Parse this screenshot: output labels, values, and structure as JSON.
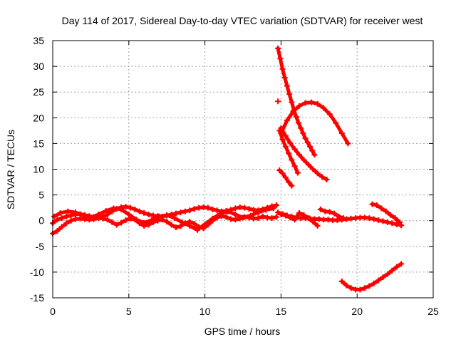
{
  "chart_data": {
    "type": "scatter",
    "title": "Day 114 of 2017, Sidereal Day-to-day VTEC variation (SDTVAR) for receiver west",
    "xlabel": "GPS time / hours",
    "ylabel": "SDTVAR / TECUs",
    "xlim": [
      0,
      25
    ],
    "ylim": [
      -15,
      35
    ],
    "xticks": [
      0,
      5,
      10,
      15,
      20,
      25
    ],
    "yticks": [
      -15,
      -10,
      -5,
      0,
      5,
      10,
      15,
      20,
      25,
      30,
      35
    ],
    "grid": true,
    "legend": "none",
    "marker": "+",
    "color": "#ff0000",
    "series": [
      {
        "x": [
          0.0,
          0.3,
          0.6,
          0.9,
          1.2,
          1.5,
          1.8,
          2.1,
          2.4,
          2.7,
          3.0,
          3.3,
          3.6,
          3.9,
          4.2,
          4.5,
          4.8,
          5.1,
          5.4,
          5.7,
          6.0,
          6.3,
          6.6,
          6.9,
          7.2,
          7.5,
          7.8,
          8.1,
          8.4,
          8.7,
          9.0,
          9.3,
          9.6,
          9.9,
          10.2,
          10.5,
          10.8,
          11.1,
          11.4,
          11.7,
          12.0,
          12.3,
          12.6,
          12.9,
          13.2,
          13.5,
          13.8,
          14.1,
          14.4,
          14.7
        ],
        "y": [
          -0.5,
          0.2,
          0.5,
          0.8,
          1.0,
          1.2,
          1.3,
          1.1,
          0.9,
          0.7,
          0.6,
          0.8,
          1.2,
          1.8,
          2.3,
          2.6,
          2.7,
          2.5,
          2.2,
          1.8,
          1.5,
          1.2,
          1.0,
          0.9,
          0.8,
          1.0,
          1.2,
          1.4,
          1.6,
          1.8,
          2.0,
          2.3,
          2.5,
          2.6,
          2.5,
          2.2,
          2.0,
          1.8,
          1.9,
          2.1,
          2.4,
          2.6,
          2.5,
          2.3,
          2.1,
          2.0,
          2.2,
          2.5,
          2.8,
          3.0
        ]
      },
      {
        "x": [
          0.0,
          0.3,
          0.6,
          0.9,
          1.2,
          1.5,
          1.8,
          2.1,
          2.4,
          2.7,
          3.0,
          3.3,
          3.6,
          3.9,
          4.2,
          4.5,
          4.8,
          5.1,
          5.4,
          5.7,
          6.0,
          6.3,
          6.6,
          6.9,
          7.2,
          7.5,
          7.8,
          8.1,
          8.4,
          8.7,
          9.0,
          9.3,
          9.6,
          9.9,
          10.2,
          10.5,
          10.8,
          11.1,
          11.4,
          11.7,
          12.0,
          12.3,
          12.6,
          12.9,
          13.2,
          13.5,
          13.8,
          14.1,
          14.4,
          14.7
        ],
        "y": [
          -2.5,
          -2.0,
          -1.2,
          -0.5,
          0.0,
          0.3,
          0.4,
          0.3,
          0.2,
          0.3,
          0.5,
          0.4,
          0.2,
          -0.3,
          -0.8,
          -0.4,
          0.1,
          0.4,
          0.2,
          -0.5,
          -1.0,
          -0.8,
          -0.3,
          0.0,
          0.2,
          -0.2,
          -0.8,
          -1.3,
          -1.1,
          -0.5,
          -0.2,
          -0.6,
          -1.2,
          -1.5,
          -0.8,
          0.0,
          0.6,
          0.9,
          0.7,
          0.3,
          0.2,
          0.4,
          0.7,
          0.6,
          0.4,
          0.5,
          0.8,
          0.6,
          0.5,
          0.7
        ]
      },
      {
        "x": [
          0.1,
          0.5,
          1.0,
          1.5,
          2.0,
          2.5,
          3.0,
          3.5,
          4.0,
          4.5,
          5.0,
          5.5,
          6.0,
          6.5,
          7.0,
          7.5,
          8.0,
          8.5,
          9.0,
          9.5,
          10.0,
          10.5,
          11.0,
          11.5,
          12.0,
          12.5,
          13.0,
          13.5,
          14.0,
          14.5
        ],
        "y": [
          0.8,
          1.5,
          1.8,
          1.6,
          1.0,
          0.6,
          1.2,
          1.9,
          2.4,
          2.2,
          1.2,
          0.2,
          -0.4,
          0.1,
          0.8,
          1.1,
          0.5,
          -0.3,
          -1.0,
          -1.8,
          -0.7,
          0.4,
          1.3,
          1.8,
          1.2,
          0.6,
          1.0,
          1.6,
          2.1,
          2.4
        ]
      },
      {
        "x": [
          14.8,
          15.1,
          15.4,
          15.7,
          16.0,
          16.3,
          16.6,
          16.9,
          17.2,
          17.5,
          17.8,
          18.1,
          18.4,
          18.7,
          19.0,
          19.3,
          19.6,
          19.9,
          20.2,
          20.5,
          20.8,
          21.1,
          21.4,
          21.7,
          22.0,
          22.3,
          22.6,
          22.9
        ],
        "y": [
          1.6,
          1.3,
          1.0,
          0.8,
          0.6,
          0.5,
          0.5,
          0.4,
          0.3,
          0.3,
          0.2,
          0.2,
          0.1,
          0.1,
          0.2,
          0.3,
          0.4,
          0.5,
          0.6,
          0.6,
          0.5,
          0.3,
          0.1,
          -0.1,
          -0.3,
          -0.5,
          -0.7,
          -0.9
        ]
      },
      {
        "x": [
          15.0,
          15.3,
          15.6,
          15.9,
          16.2,
          16.5,
          16.8,
          17.1,
          17.4
        ],
        "y": [
          1.2,
          1.0,
          0.6,
          0.2,
          1.5,
          1.1,
          0.5,
          -0.2,
          -1.0
        ]
      },
      {
        "x": [
          17.6,
          17.9,
          18.2,
          18.5,
          18.8,
          19.1
        ],
        "y": [
          2.2,
          1.8,
          1.7,
          1.4,
          0.8,
          0.5
        ]
      },
      {
        "x": [
          21.0,
          21.3,
          21.6,
          21.9,
          22.2,
          22.5,
          22.8
        ],
        "y": [
          3.2,
          3.0,
          2.4,
          1.8,
          1.1,
          0.5,
          -0.3
        ]
      },
      {
        "x": [
          14.8,
          14.95,
          15.1,
          15.25,
          15.4,
          15.55,
          15.7,
          15.85,
          16.0,
          16.15,
          16.3,
          16.45,
          16.6,
          16.75,
          16.9,
          17.05,
          17.2
        ],
        "y": [
          33.5,
          31.5,
          29.5,
          27.8,
          26.2,
          24.6,
          23.0,
          21.5,
          20.2,
          19.0,
          18.0,
          17.0,
          16.0,
          15.2,
          14.4,
          13.6,
          12.8
        ]
      },
      {
        "x": [
          15.0,
          15.4,
          15.8,
          16.2,
          16.6,
          17.0,
          17.4,
          17.8,
          18.2,
          18.6,
          19.0,
          19.4
        ],
        "y": [
          17.0,
          19.5,
          21.2,
          22.3,
          22.9,
          23.0,
          22.7,
          21.9,
          20.7,
          19.0,
          17.0,
          15.0
        ]
      },
      {
        "x": [
          15.0,
          15.3,
          15.6,
          15.9,
          16.2,
          16.5,
          16.8,
          17.1,
          17.4,
          17.7,
          18.0
        ],
        "y": [
          18.0,
          16.5,
          15.1,
          13.9,
          12.8,
          11.8,
          10.9,
          10.0,
          9.2,
          8.5,
          8.0
        ]
      },
      {
        "x": [
          14.9,
          15.1,
          15.3,
          15.5,
          15.7,
          15.9,
          16.1
        ],
        "y": [
          17.5,
          15.8,
          14.4,
          13.1,
          11.8,
          10.6,
          9.3
        ]
      },
      {
        "x": [
          14.9,
          15.1,
          15.3,
          15.5,
          15.7
        ],
        "y": [
          9.8,
          9.2,
          8.4,
          7.5,
          6.8
        ]
      },
      {
        "x": [
          14.8
        ],
        "y": [
          23.2
        ]
      },
      {
        "x": [
          19.0,
          19.3,
          19.6,
          19.9,
          20.2,
          20.5,
          20.8,
          21.1,
          21.4,
          21.7,
          22.0,
          22.3,
          22.6,
          22.9
        ],
        "y": [
          -11.8,
          -12.6,
          -13.1,
          -13.4,
          -13.4,
          -13.1,
          -12.7,
          -12.2,
          -11.6,
          -11.0,
          -10.4,
          -9.7,
          -9.0,
          -8.4
        ]
      }
    ]
  }
}
